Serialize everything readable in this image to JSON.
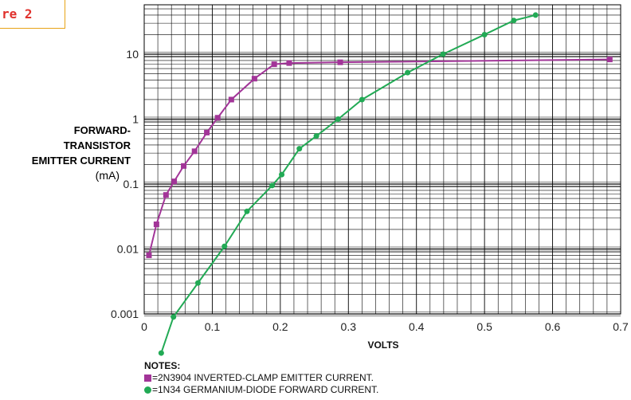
{
  "figure_label": "re 2",
  "chart_data": {
    "type": "line",
    "title": "",
    "xlabel": "VOLTS",
    "ylabel_lines": [
      "FORWARD-",
      "TRANSISTOR",
      "EMITTER CURRENT"
    ],
    "yunit": "(mA)",
    "xlim": [
      0,
      0.7
    ],
    "ylim": [
      0.001,
      50
    ],
    "yscale": "log",
    "grid": true,
    "x_ticks": [
      "0",
      "0.1",
      "0.2",
      "0.3",
      "0.4",
      "0.5",
      "0.6",
      "0.7"
    ],
    "y_ticks": [
      "0.001",
      "0.01",
      "0.1",
      "1",
      "10"
    ],
    "series": [
      {
        "name": "2N3904 INVERTED-CLAMP EMITTER CURRENT.",
        "marker": "square",
        "color": "#a23598",
        "x": [
          0.007,
          0.018,
          0.032,
          0.044,
          0.058,
          0.074,
          0.092,
          0.108,
          0.128,
          0.162,
          0.191,
          0.213,
          0.288,
          0.684
        ],
        "y": [
          0.008,
          0.024,
          0.068,
          0.11,
          0.19,
          0.32,
          0.62,
          1.05,
          2.0,
          4.2,
          7.0,
          7.3,
          7.5,
          8.3
        ]
      },
      {
        "name": "1N34 GERMANIUM-DIODE FORWARD CURRENT.",
        "marker": "circle",
        "color": "#22aa55",
        "x": [
          0.025,
          0.043,
          0.079,
          0.118,
          0.151,
          0.188,
          0.202,
          0.228,
          0.253,
          0.285,
          0.32,
          0.387,
          0.439,
          0.5,
          0.543,
          0.575
        ],
        "y": [
          0.00025,
          0.0009,
          0.003,
          0.011,
          0.038,
          0.095,
          0.14,
          0.35,
          0.55,
          1.0,
          2.0,
          5.2,
          10.0,
          20.0,
          33.0,
          40.0
        ]
      }
    ]
  },
  "notes": {
    "title": "NOTES:",
    "items": [
      "=2N3904 INVERTED-CLAMP EMITTER CURRENT.",
      "=1N34 GERMANIUM-DIODE FORWARD CURRENT."
    ]
  }
}
